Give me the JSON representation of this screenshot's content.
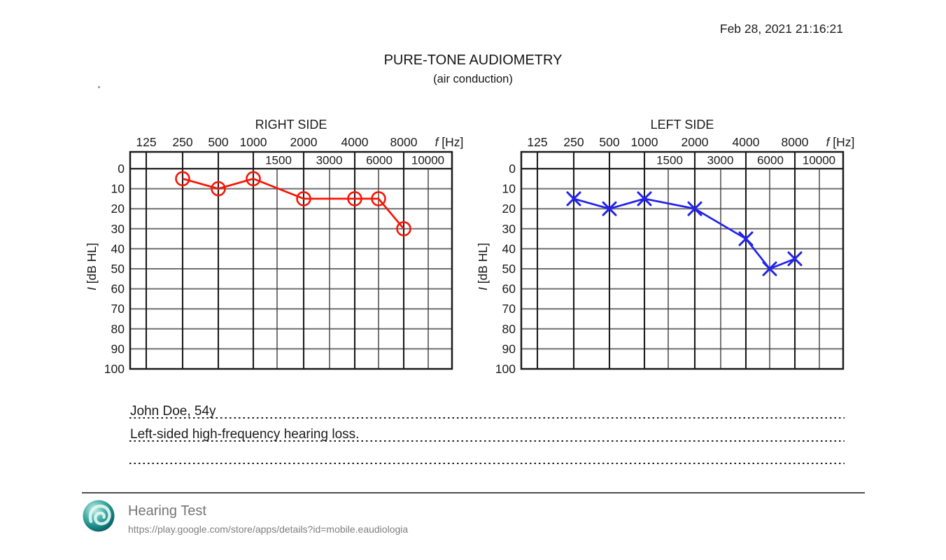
{
  "page": {
    "datetime": "Feb 28, 2021 21:16:21",
    "title": "PURE-TONE AUDIOMETRY",
    "subtitle": "(air conduction)"
  },
  "chart_data": [
    {
      "type": "line",
      "ear": "right",
      "title": "RIGHT SIDE",
      "marker": "circle",
      "series_color": "#f71505",
      "xlabel": "f [Hz]",
      "ylabel": "I [dB HL]",
      "x_scale": "log",
      "grid": true,
      "x_hz": [
        250,
        500,
        1000,
        2000,
        4000,
        6000,
        8000
      ],
      "y_db": [
        5,
        10,
        5,
        15,
        15,
        15,
        30
      ],
      "x_major_ticks": [
        125,
        250,
        500,
        1000,
        2000,
        4000,
        8000
      ],
      "x_header_ticks": [
        1500,
        3000,
        6000,
        10000
      ],
      "y_ticks": [
        0,
        10,
        20,
        30,
        40,
        50,
        60,
        70,
        80,
        90,
        100
      ],
      "ylim": [
        0,
        100
      ],
      "y_inverted": true
    },
    {
      "type": "line",
      "ear": "left",
      "title": "LEFT SIDE",
      "marker": "x",
      "series_color": "#2222ee",
      "xlabel": "f [Hz]",
      "ylabel": "I [dB HL]",
      "x_scale": "log",
      "grid": true,
      "x_hz": [
        250,
        500,
        1000,
        2000,
        4000,
        6000,
        8000
      ],
      "y_db": [
        15,
        20,
        15,
        20,
        35,
        50,
        45
      ],
      "x_major_ticks": [
        125,
        250,
        500,
        1000,
        2000,
        4000,
        8000
      ],
      "x_header_ticks": [
        1500,
        3000,
        6000,
        10000
      ],
      "y_ticks": [
        0,
        10,
        20,
        30,
        40,
        50,
        60,
        70,
        80,
        90,
        100
      ],
      "ylim": [
        0,
        100
      ],
      "y_inverted": true
    }
  ],
  "notes": {
    "line1": "John Doe, 54y",
    "line2": "Left-sided high-frequency hearing loss.",
    "line3": ""
  },
  "footer": {
    "app_name": "Hearing Test",
    "app_url": "https://play.google.com/store/apps/details?id=mobile.eaudiologia"
  }
}
